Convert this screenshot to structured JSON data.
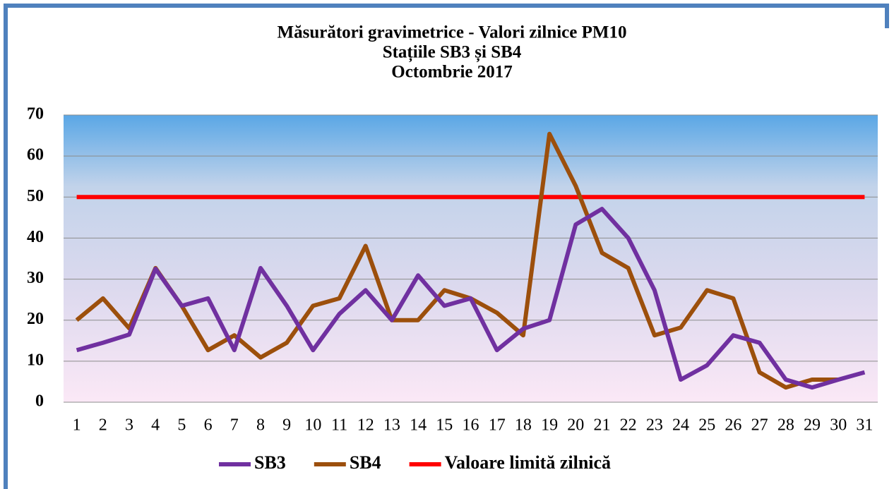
{
  "chart_data": {
    "type": "line",
    "title": [
      "Măsurători gravimetrice - Valori zilnice PM10",
      "Stațiile  SB3 și SB4",
      "Octombrie 2017"
    ],
    "categories": [
      1,
      2,
      3,
      4,
      5,
      6,
      7,
      8,
      9,
      10,
      11,
      12,
      13,
      14,
      15,
      16,
      17,
      18,
      19,
      20,
      21,
      22,
      23,
      24,
      25,
      26,
      27,
      28,
      29,
      30,
      31
    ],
    "series": [
      {
        "name": "SB3",
        "color": "#7030a0",
        "values": [
          12.7,
          14.5,
          16.5,
          32.5,
          23.5,
          25.3,
          12.7,
          32.7,
          23.5,
          12.7,
          21.5,
          27.3,
          20,
          30.9,
          23.5,
          25.3,
          12.7,
          17.9,
          20,
          43.3,
          47.1,
          40,
          27.3,
          5.5,
          9,
          16.3,
          14.5,
          5.5,
          3.6,
          5.5,
          7.3
        ]
      },
      {
        "name": "SB4",
        "color": "#9c4f0c",
        "values": [
          20,
          25.3,
          18,
          32.7,
          23.5,
          12.7,
          16.3,
          10.9,
          14.5,
          23.5,
          25.3,
          38.1,
          20,
          20,
          27.3,
          25.3,
          21.8,
          16.3,
          65.4,
          52.7,
          36.4,
          32.7,
          16.3,
          18.2,
          27.3,
          25.3,
          7.3,
          3.6,
          5.5,
          5.5,
          null
        ]
      },
      {
        "name": "Valoare limită zilnică",
        "color": "#ff0000",
        "values": [
          50,
          50,
          50,
          50,
          50,
          50,
          50,
          50,
          50,
          50,
          50,
          50,
          50,
          50,
          50,
          50,
          50,
          50,
          50,
          50,
          50,
          50,
          50,
          50,
          50,
          50,
          50,
          50,
          50,
          50,
          50
        ]
      }
    ],
    "ylim": [
      0,
      70
    ],
    "yticks": [
      0,
      10,
      20,
      30,
      40,
      50,
      60,
      70
    ],
    "grid": true,
    "legend": "bottom"
  }
}
